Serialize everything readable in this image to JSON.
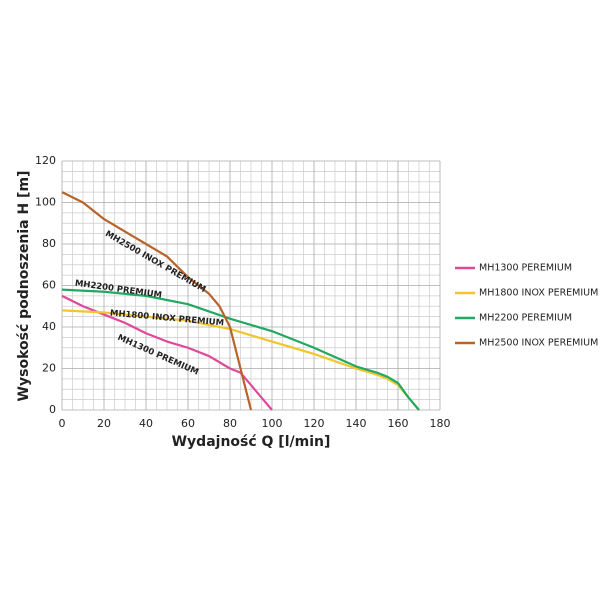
{
  "chart_data": {
    "type": "line",
    "x_label": "Wydajność Q [l/min]",
    "y_label": "Wysokość podnoszenia H [m]",
    "xlim": [
      0,
      180
    ],
    "xticks": [
      0,
      20,
      40,
      60,
      80,
      100,
      120,
      140,
      160,
      180
    ],
    "ylim": [
      0,
      120
    ],
    "yticks": [
      0,
      20,
      40,
      60,
      80,
      100,
      120
    ],
    "grid": true,
    "legend": "right",
    "series": [
      {
        "name": "MH1300 PEREMIUM",
        "color": "#e0489a",
        "x": [
          0,
          10,
          20,
          30,
          40,
          50,
          60,
          70,
          80,
          85,
          90,
          95,
          100
        ],
        "values": [
          55,
          50,
          46,
          42,
          37,
          33,
          30,
          26,
          20,
          18,
          12,
          6,
          0
        ]
      },
      {
        "name": "MH1800 INOX PEREMIUM",
        "color": "#f2c52a",
        "x": [
          0,
          20,
          40,
          60,
          80,
          90,
          100,
          120,
          140,
          150,
          155,
          160,
          165,
          170
        ],
        "values": [
          48,
          47,
          45,
          43,
          39,
          36,
          33,
          27,
          20,
          17,
          15,
          12,
          6,
          0
        ]
      },
      {
        "name": "MH2200 PEREMIUM",
        "color": "#22a862",
        "x": [
          0,
          20,
          40,
          60,
          80,
          100,
          120,
          140,
          150,
          155,
          160,
          165,
          170
        ],
        "values": [
          58,
          57,
          55,
          51,
          44,
          38,
          30,
          21,
          18,
          16,
          13,
          6,
          0
        ]
      },
      {
        "name": "MH2500 INOX PEREMIUM",
        "color": "#b8632a",
        "x": [
          0,
          10,
          20,
          30,
          40,
          50,
          60,
          70,
          75,
          80,
          85,
          88,
          90
        ],
        "values": [
          105,
          100,
          92,
          86,
          80,
          74,
          64,
          56,
          50,
          40,
          20,
          8,
          0
        ]
      }
    ],
    "curve_labels": [
      "MH1300 PREMIUM",
      "MH1800 INOX PREMIUM",
      "MH2200 PREMIUM",
      "MH2500 INOX PREMIUM"
    ]
  }
}
